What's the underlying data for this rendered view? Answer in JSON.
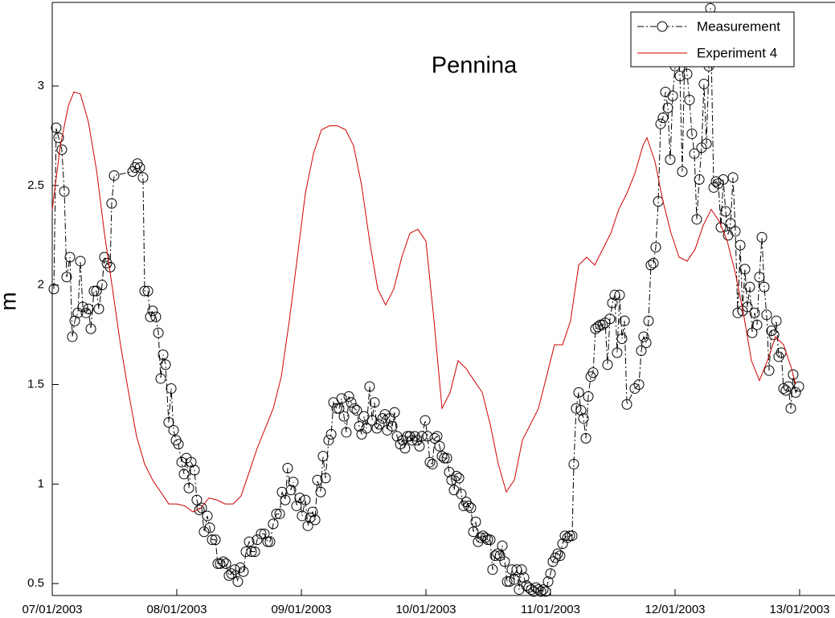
{
  "chart_data": {
    "type": "line",
    "title": "Pennina",
    "ylabel": "m",
    "xlim": [
      7,
      13
    ],
    "ylim": [
      0.44,
      3.42
    ],
    "xticks": [
      {
        "value": 7,
        "label": "07/01/2003"
      },
      {
        "value": 8,
        "label": "08/01/2003"
      },
      {
        "value": 9,
        "label": "09/01/2003"
      },
      {
        "value": 10,
        "label": "10/01/2003"
      },
      {
        "value": 11,
        "label": "11/01/2003"
      },
      {
        "value": 12,
        "label": "12/01/2003"
      },
      {
        "value": 13,
        "label": "13/01/2003"
      }
    ],
    "yticks": [
      0.5,
      1,
      1.5,
      2,
      2.5,
      3
    ],
    "grid": false,
    "legend": "upper right",
    "series": [
      {
        "name": "Measurement",
        "color": "#000000",
        "marker": "circle",
        "linestyle": "dashdot",
        "x": [
          7.013,
          7.032,
          7.052,
          7.077,
          7.097,
          7.116,
          7.142,
          7.161,
          7.181,
          7.206,
          7.226,
          7.245,
          7.271,
          7.29,
          7.31,
          7.335,
          7.355,
          7.374,
          7.4,
          7.419,
          7.439,
          7.465,
          7.477,
          7.497,
          7.645,
          7.665,
          7.684,
          7.703,
          7.729,
          7.742,
          7.768,
          7.787,
          7.806,
          7.832,
          7.852,
          7.871,
          7.89,
          7.91,
          7.935,
          7.955,
          7.974,
          7.994,
          8.013,
          8.039,
          8.058,
          8.077,
          8.097,
          8.116,
          8.142,
          8.161,
          8.181,
          8.2,
          8.219,
          8.245,
          8.265,
          8.284,
          8.31,
          8.329,
          8.348,
          8.374,
          8.394,
          8.419,
          8.439,
          8.465,
          8.49,
          8.51,
          8.535,
          8.555,
          8.581,
          8.6,
          8.626,
          8.645,
          8.677,
          8.703,
          8.729,
          8.748,
          8.774,
          8.8,
          8.826,
          8.845,
          8.871,
          8.89,
          8.916,
          8.935,
          8.961,
          8.987,
          9.006,
          9.032,
          9.052,
          9.071,
          9.09,
          9.11,
          9.129,
          9.155,
          9.174,
          9.194,
          9.219,
          9.239,
          9.258,
          9.284,
          9.303,
          9.323,
          9.342,
          9.361,
          9.381,
          9.4,
          9.426,
          9.445,
          9.465,
          9.484,
          9.503,
          9.523,
          9.548,
          9.568,
          9.587,
          9.606,
          9.626,
          9.652,
          9.671,
          9.69,
          9.71,
          9.729,
          9.748,
          9.768,
          9.794,
          9.813,
          9.832,
          9.852,
          9.871,
          9.89,
          9.91,
          9.929,
          9.948,
          9.968,
          9.994,
          10.013,
          10.032,
          10.052,
          10.071,
          10.09,
          10.11,
          10.129,
          10.148,
          10.168,
          10.187,
          10.206,
          10.226,
          10.245,
          10.265,
          10.284,
          10.303,
          10.323,
          10.342,
          10.361,
          10.381,
          10.4,
          10.419,
          10.439,
          10.458,
          10.477,
          10.497,
          10.516,
          10.535,
          10.555,
          10.574,
          10.594,
          10.613,
          10.632,
          10.652,
          10.671,
          10.69,
          10.71,
          10.729,
          10.748,
          10.768,
          10.787,
          10.806,
          10.826,
          10.845,
          10.865,
          10.884,
          10.903,
          10.923,
          10.942,
          10.961,
          10.981,
          11.0,
          11.019,
          11.039,
          11.058,
          11.077,
          11.097,
          11.116,
          11.135,
          11.155,
          11.174,
          11.187,
          11.206,
          11.226,
          11.245,
          11.265,
          11.284,
          11.303,
          11.323,
          11.342,
          11.361,
          11.381,
          11.4,
          11.419,
          11.439,
          11.458,
          11.477,
          11.497,
          11.516,
          11.535,
          11.555,
          11.574,
          11.594,
          11.613,
          11.677,
          11.71,
          11.729,
          11.748,
          11.768,
          11.787,
          11.806,
          11.826,
          11.845,
          11.865,
          11.884,
          11.903,
          11.923,
          11.942,
          11.961,
          11.981,
          12.0,
          12.019,
          12.039,
          12.058,
          12.077,
          12.097,
          12.116,
          12.135,
          12.155,
          12.174,
          12.194,
          12.213,
          12.232,
          12.252,
          12.271,
          12.284,
          12.31,
          12.329,
          12.348,
          12.368,
          12.387,
          12.406,
          12.426,
          12.445,
          12.465,
          12.484,
          12.503,
          12.523,
          12.542,
          12.561,
          12.581,
          12.6,
          12.619,
          12.639,
          12.658,
          12.677,
          12.697,
          12.716,
          12.735,
          12.755,
          12.774,
          12.794,
          12.813,
          12.832,
          12.852,
          12.871,
          12.89,
          12.91,
          12.929,
          12.948,
          12.968,
          12.994
        ],
        "values": [
          1.98,
          2.79,
          2.74,
          2.68,
          2.47,
          2.04,
          2.14,
          1.74,
          1.82,
          1.86,
          2.12,
          1.89,
          1.86,
          1.88,
          1.78,
          1.97,
          1.97,
          1.88,
          2.0,
          2.14,
          2.11,
          2.09,
          2.41,
          2.55,
          2.57,
          2.59,
          2.61,
          2.59,
          2.54,
          1.97,
          1.97,
          1.84,
          1.87,
          1.84,
          1.76,
          1.53,
          1.65,
          1.6,
          1.31,
          1.48,
          1.27,
          1.22,
          1.2,
          1.11,
          1.05,
          1.13,
          0.98,
          1.11,
          1.07,
          0.92,
          0.87,
          0.88,
          0.76,
          0.84,
          0.78,
          0.72,
          0.72,
          0.6,
          0.6,
          0.61,
          0.6,
          0.54,
          0.55,
          0.57,
          0.51,
          0.58,
          0.56,
          0.66,
          0.71,
          0.66,
          0.66,
          0.72,
          0.75,
          0.75,
          0.71,
          0.71,
          0.8,
          0.85,
          0.85,
          0.96,
          0.92,
          1.08,
          0.97,
          1.01,
          0.89,
          0.93,
          0.84,
          0.92,
          0.79,
          0.83,
          0.86,
          0.82,
          1.02,
          0.96,
          1.14,
          1.03,
          1.22,
          1.25,
          1.41,
          1.38,
          1.38,
          1.43,
          1.34,
          1.26,
          1.44,
          1.41,
          1.38,
          1.37,
          1.29,
          1.25,
          1.34,
          1.28,
          1.49,
          1.32,
          1.41,
          1.28,
          1.3,
          1.33,
          1.35,
          1.27,
          1.33,
          1.29,
          1.36,
          1.24,
          1.2,
          1.22,
          1.18,
          1.24,
          1.24,
          1.22,
          1.24,
          1.22,
          1.19,
          1.24,
          1.32,
          1.24,
          1.11,
          1.1,
          1.23,
          1.24,
          1.19,
          1.14,
          1.13,
          1.13,
          1.06,
          1.02,
          0.97,
          1.04,
          1.03,
          0.95,
          0.89,
          0.91,
          0.89,
          0.88,
          0.76,
          0.81,
          0.71,
          0.73,
          0.74,
          0.73,
          0.72,
          0.72,
          0.57,
          0.64,
          0.65,
          0.64,
          0.69,
          0.61,
          0.51,
          0.51,
          0.57,
          0.52,
          0.57,
          0.47,
          0.57,
          0.53,
          0.49,
          0.48,
          0.47,
          0.46,
          0.48,
          0.47,
          0.46,
          0.47,
          0.46,
          0.51,
          0.55,
          0.61,
          0.63,
          0.65,
          0.64,
          0.7,
          0.74,
          0.73,
          0.74,
          0.74,
          1.1,
          1.38,
          1.46,
          1.37,
          1.33,
          1.23,
          1.44,
          1.54,
          1.56,
          1.78,
          1.79,
          1.8,
          1.8,
          1.81,
          1.6,
          1.83,
          1.91,
          1.95,
          1.66,
          1.95,
          1.73,
          1.82,
          1.4,
          1.48,
          1.5,
          1.67,
          1.74,
          1.71,
          1.82,
          2.1,
          2.11,
          2.19,
          2.42,
          2.81,
          2.84,
          2.97,
          2.89,
          2.63,
          2.95,
          3.1,
          3.2,
          3.05,
          2.57,
          3.15,
          3.06,
          2.93,
          2.76,
          2.66,
          2.33,
          2.53,
          2.69,
          3.01,
          2.71,
          3.1,
          3.39,
          2.49,
          2.52,
          2.51,
          2.29,
          2.53,
          2.37,
          2.25,
          2.31,
          2.54,
          2.27,
          1.86,
          2.2,
          1.87,
          2.08,
          1.89,
          1.99,
          1.76,
          1.86,
          1.8,
          2.04,
          2.24,
          1.99,
          1.85,
          1.57,
          1.77,
          1.75,
          1.82,
          1.64,
          1.66,
          1.48,
          1.47,
          1.49,
          1.38,
          1.55,
          1.46,
          1.49
        ]
      },
      {
        "name": "Experiment 4",
        "color": "#d00000",
        "marker": "none",
        "linestyle": "solid",
        "x": [
          7.0,
          7.065,
          7.129,
          7.174,
          7.226,
          7.29,
          7.355,
          7.419,
          7.484,
          7.548,
          7.613,
          7.677,
          7.742,
          7.806,
          7.871,
          7.935,
          8.0,
          8.065,
          8.129,
          8.194,
          8.258,
          8.323,
          8.387,
          8.452,
          8.516,
          8.581,
          8.645,
          8.71,
          8.774,
          8.839,
          8.903,
          8.968,
          9.032,
          9.097,
          9.161,
          9.226,
          9.29,
          9.355,
          9.419,
          9.484,
          9.548,
          9.613,
          9.677,
          9.742,
          9.806,
          9.871,
          9.935,
          10.0,
          10.065,
          10.129,
          10.194,
          10.258,
          10.323,
          10.387,
          10.452,
          10.516,
          10.581,
          10.645,
          10.71,
          10.774,
          10.839,
          10.903,
          10.968,
          11.032,
          11.097,
          11.161,
          11.226,
          11.29,
          11.355,
          11.419,
          11.484,
          11.548,
          11.613,
          11.677,
          11.742,
          11.774,
          11.839,
          11.903,
          11.968,
          12.032,
          12.097,
          12.161,
          12.226,
          12.29,
          12.355,
          12.419,
          12.484,
          12.548,
          12.613,
          12.677,
          12.742,
          12.806,
          12.871,
          12.935,
          12.968
        ],
        "values": [
          2.38,
          2.7,
          2.9,
          2.97,
          2.96,
          2.82,
          2.58,
          2.26,
          1.98,
          1.7,
          1.46,
          1.24,
          1.1,
          1.02,
          0.96,
          0.9,
          0.9,
          0.89,
          0.86,
          0.88,
          0.93,
          0.92,
          0.9,
          0.9,
          0.94,
          1.06,
          1.18,
          1.28,
          1.38,
          1.54,
          1.82,
          2.14,
          2.46,
          2.66,
          2.78,
          2.8,
          2.8,
          2.78,
          2.7,
          2.5,
          2.22,
          1.98,
          1.9,
          1.98,
          2.14,
          2.26,
          2.28,
          2.22,
          1.82,
          1.38,
          1.46,
          1.62,
          1.58,
          1.52,
          1.46,
          1.3,
          1.1,
          0.96,
          1.02,
          1.22,
          1.3,
          1.38,
          1.54,
          1.7,
          1.7,
          1.82,
          2.1,
          2.14,
          2.1,
          2.18,
          2.26,
          2.38,
          2.46,
          2.56,
          2.7,
          2.74,
          2.62,
          2.42,
          2.26,
          2.14,
          2.12,
          2.18,
          2.3,
          2.38,
          2.32,
          2.22,
          2.06,
          1.86,
          1.62,
          1.52,
          1.62,
          1.74,
          1.7,
          1.58,
          1.5
        ]
      }
    ]
  }
}
